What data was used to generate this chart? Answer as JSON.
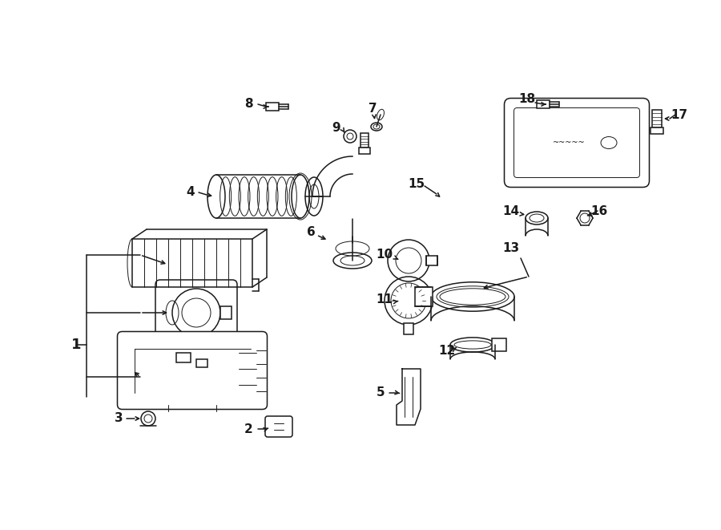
{
  "bg_color": "#ffffff",
  "lc": "#1a1a1a",
  "lw": 1.1,
  "fig_w": 9.0,
  "fig_h": 6.61,
  "dpi": 100
}
